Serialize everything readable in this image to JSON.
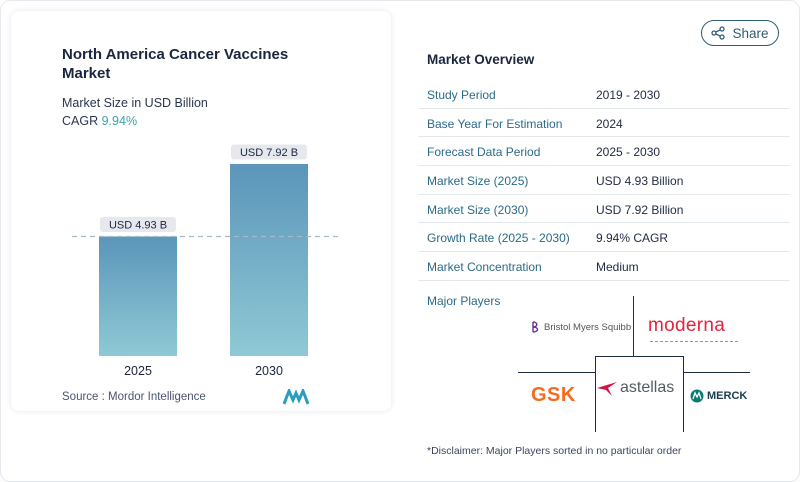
{
  "chart_panel": {
    "title": "North America Cancer Vaccines Market",
    "subtitle": "Market Size in USD Billion",
    "cagr_label": "CAGR",
    "cagr_value": "9.94%",
    "source": "Source :  Mordor Intelligence"
  },
  "chart_data": {
    "type": "bar",
    "categories": [
      "2025",
      "2030"
    ],
    "values": [
      4.93,
      7.92
    ],
    "value_labels": [
      "USD 4.93 B",
      "USD 7.92 B"
    ],
    "title": "North America Cancer Vaccines Market",
    "ylabel": "Market Size in USD Billion",
    "ylim": [
      0,
      7.92
    ],
    "grid": false,
    "reference_line": "dashed line at the 2025 value",
    "colors": {
      "bar_top": "#5b95b9",
      "bar_bottom": "#8fc9d5",
      "label_bg": "#e6e8ed",
      "dash": "#a7b8c8"
    }
  },
  "share_button": {
    "label": "Share",
    "icon": "share-icon"
  },
  "overview": {
    "title": "Market Overview",
    "rows": [
      {
        "key": "Study Period",
        "value": "2019 - 2030"
      },
      {
        "key": "Base Year For Estimation",
        "value": "2024"
      },
      {
        "key": "Forecast Data Period",
        "value": "2025 - 2030"
      },
      {
        "key": "Market Size (2025)",
        "value": "USD 4.93 Billion"
      },
      {
        "key": "Market Size (2030)",
        "value": "USD 7.92 Billion"
      },
      {
        "key": "Growth Rate (2025 - 2030)",
        "value": "9.94% CAGR"
      },
      {
        "key": "Market Concentration",
        "value": "Medium"
      }
    ],
    "players_label": "Major Players",
    "players": {
      "bms": "Bristol Myers Squibb",
      "moderna": "moderna",
      "gsk": "GSK",
      "astellas": "astellas",
      "merck": "MERCK"
    },
    "disclaimer": "*Disclaimer: Major Players sorted in no particular order"
  },
  "colors": {
    "accent_teal": "#3aa6a8",
    "key_text": "#2b6a89",
    "moderna_red": "#e5233f",
    "gsk_orange": "#f36c21"
  }
}
